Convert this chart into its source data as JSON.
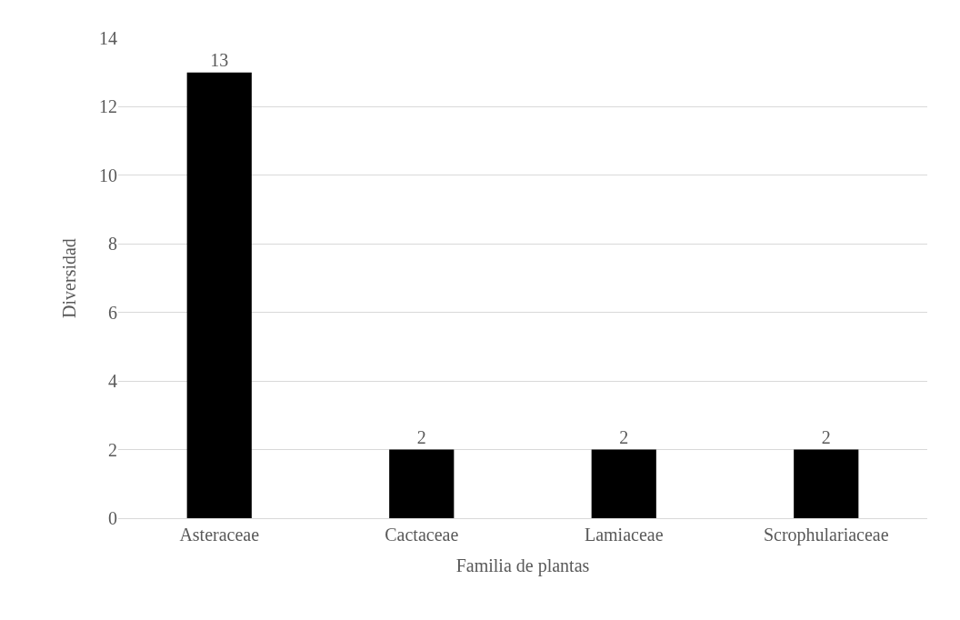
{
  "chart_data": {
    "type": "bar",
    "xlabel": "Familia de plantas",
    "ylabel": "Diversidad",
    "categories": [
      "Asteraceae",
      "Cactaceae",
      "Lamiaceae",
      "Scrophulariaceae"
    ],
    "values": [
      13,
      2,
      2,
      2
    ],
    "color": "#000000",
    "ylim": [
      0,
      14
    ],
    "yticks": [
      0,
      2,
      4,
      6,
      8,
      10,
      12,
      14
    ],
    "grid": "y",
    "data_labels": true,
    "legend": false
  }
}
